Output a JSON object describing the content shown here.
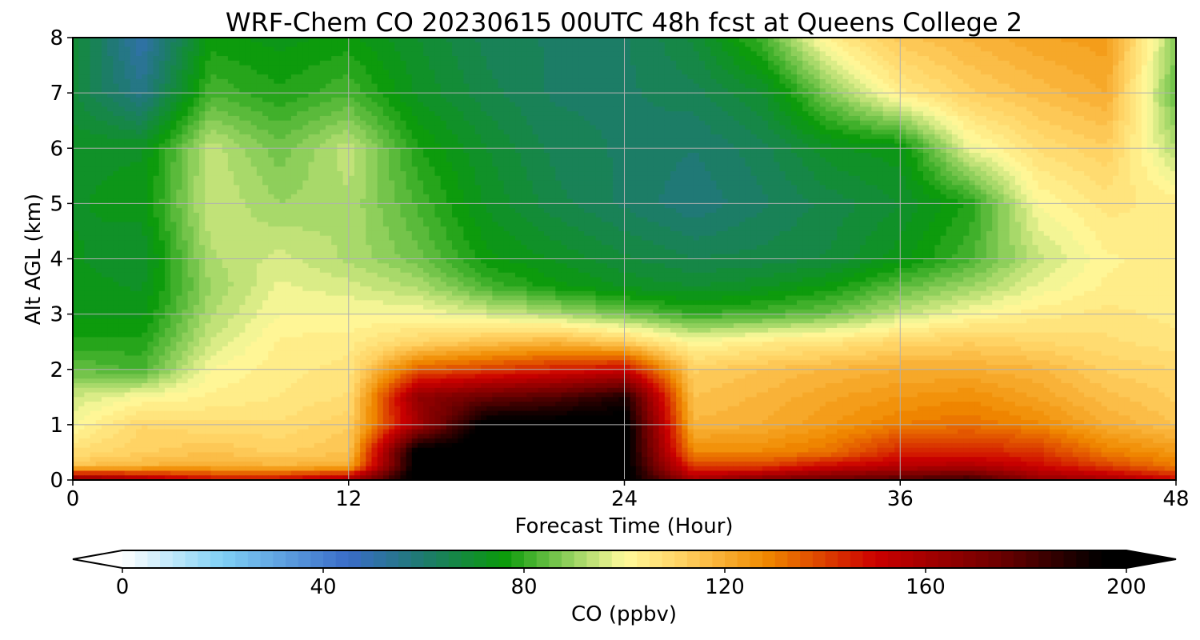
{
  "chart_data": {
    "type": "heatmap",
    "title": "WRF-Chem CO  20230615 00UTC 48h fcst at Queens College 2",
    "xlabel": "Forecast Time (Hour)",
    "ylabel": "Alt AGL (km)",
    "xlim": [
      0,
      48
    ],
    "ylim": [
      0,
      8
    ],
    "xticks": [
      "0",
      "12",
      "24",
      "36",
      "48"
    ],
    "yticks": [
      "0",
      "1",
      "2",
      "3",
      "4",
      "5",
      "6",
      "7",
      "8"
    ],
    "grid": true,
    "colorbar": {
      "label": "CO  (ppbv)",
      "min": 0,
      "max": 200,
      "ticks": [
        "0",
        "40",
        "80",
        "120",
        "160",
        "200"
      ],
      "extend": "both",
      "color_stops": [
        {
          "value": 0,
          "color": "#ffffff"
        },
        {
          "value": 20,
          "color": "#7fd0f5"
        },
        {
          "value": 45,
          "color": "#3a6cc8"
        },
        {
          "value": 60,
          "color": "#1e7a6e"
        },
        {
          "value": 76,
          "color": "#0a9a0a"
        },
        {
          "value": 90,
          "color": "#9bd463"
        },
        {
          "value": 100,
          "color": "#fffa9c"
        },
        {
          "value": 112,
          "color": "#ffd060"
        },
        {
          "value": 128,
          "color": "#f08a00"
        },
        {
          "value": 150,
          "color": "#cc0000"
        },
        {
          "value": 175,
          "color": "#6b0000"
        },
        {
          "value": 195,
          "color": "#000000"
        },
        {
          "value": 200,
          "color": "#000000"
        }
      ]
    },
    "x": [
      0,
      3,
      6,
      9,
      12,
      15,
      18,
      21,
      24,
      27,
      30,
      33,
      36,
      39,
      42,
      45,
      48
    ],
    "y": [
      0,
      0.25,
      0.5,
      1,
      1.5,
      2,
      2.5,
      3,
      3.5,
      4,
      5,
      6,
      7,
      8
    ],
    "z": [
      [
        170,
        160,
        150,
        150,
        160,
        200,
        200,
        200,
        200,
        160,
        170,
        175,
        180,
        185,
        165,
        160,
        150
      ],
      [
        115,
        118,
        120,
        118,
        120,
        200,
        200,
        200,
        200,
        140,
        140,
        150,
        155,
        158,
        150,
        140,
        130
      ],
      [
        108,
        112,
        115,
        112,
        115,
        200,
        200,
        200,
        200,
        128,
        128,
        132,
        145,
        145,
        142,
        130,
        125
      ],
      [
        100,
        110,
        108,
        108,
        112,
        160,
        200,
        200,
        200,
        118,
        120,
        125,
        130,
        132,
        128,
        120,
        115
      ],
      [
        95,
        100,
        103,
        105,
        108,
        165,
        175,
        180,
        190,
        115,
        118,
        122,
        125,
        127,
        122,
        116,
        112
      ],
      [
        85,
        82,
        100,
        104,
        106,
        135,
        140,
        145,
        150,
        112,
        115,
        118,
        120,
        120,
        118,
        112,
        110
      ],
      [
        78,
        78,
        95,
        103,
        104,
        110,
        115,
        118,
        112,
        100,
        104,
        106,
        110,
        112,
        110,
        108,
        106
      ],
      [
        74,
        74,
        92,
        100,
        100,
        100,
        96,
        92,
        86,
        80,
        82,
        86,
        94,
        100,
        104,
        106,
        104
      ],
      [
        74,
        72,
        90,
        98,
        96,
        92,
        82,
        76,
        72,
        70,
        72,
        76,
        84,
        90,
        98,
        103,
        104
      ],
      [
        73,
        70,
        92,
        96,
        92,
        86,
        76,
        72,
        68,
        65,
        66,
        68,
        74,
        82,
        94,
        102,
        104
      ],
      [
        72,
        74,
        95,
        90,
        92,
        82,
        72,
        66,
        62,
        58,
        62,
        66,
        70,
        78,
        100,
        106,
        104
      ],
      [
        72,
        72,
        94,
        86,
        94,
        78,
        70,
        64,
        62,
        60,
        64,
        72,
        74,
        98,
        108,
        112,
        92
      ],
      [
        68,
        56,
        82,
        78,
        82,
        72,
        66,
        62,
        62,
        64,
        70,
        88,
        104,
        112,
        116,
        120,
        84
      ],
      [
        70,
        50,
        76,
        74,
        76,
        70,
        64,
        62,
        62,
        68,
        82,
        104,
        114,
        118,
        122,
        124,
        88
      ]
    ]
  }
}
